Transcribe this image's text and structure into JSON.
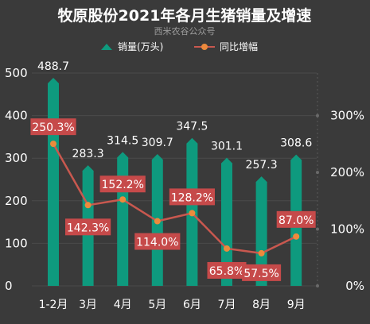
{
  "title": "牧原股份2021年各月生猪销量及增速",
  "subtitle": "西米农谷公众号",
  "colors": {
    "background": "#3a3a3a",
    "bar": "#0e9a7e",
    "line": "#c9584f",
    "marker": "#ec8a3c",
    "label_bg": "#c64a4a",
    "grid": "#4a4a4a"
  },
  "chart_data": {
    "type": "bar",
    "categories": [
      "1-2月",
      "3月",
      "4月",
      "5月",
      "6月",
      "7月",
      "8月",
      "9月"
    ],
    "series": [
      {
        "name": "销量(万头)",
        "type": "bar",
        "axis": "left",
        "values": [
          488.7,
          283.3,
          314.5,
          309.7,
          347.5,
          301.1,
          257.3,
          308.6
        ],
        "labels": [
          "488.7",
          "283.3",
          "314.5",
          "309.7",
          "347.5",
          "301.1",
          "257.3",
          "308.6"
        ]
      },
      {
        "name": "同比增幅",
        "type": "line",
        "axis": "right",
        "values": [
          250.3,
          142.3,
          152.2,
          114.0,
          128.2,
          65.8,
          57.5,
          87.0
        ],
        "labels": [
          "250.3%",
          "142.3%",
          "152.2%",
          "114.0%",
          "128.2%",
          "65.8%",
          "57.5%",
          "87.0%"
        ]
      }
    ],
    "y_left": {
      "min": 0,
      "max": 500,
      "ticks": [
        "0",
        "100",
        "200",
        "300",
        "400",
        "500"
      ]
    },
    "y_right": {
      "min": 0,
      "max": 375,
      "ticks": [
        "0%",
        "100%",
        "200%",
        "300%"
      ]
    },
    "legend_position": "top"
  }
}
